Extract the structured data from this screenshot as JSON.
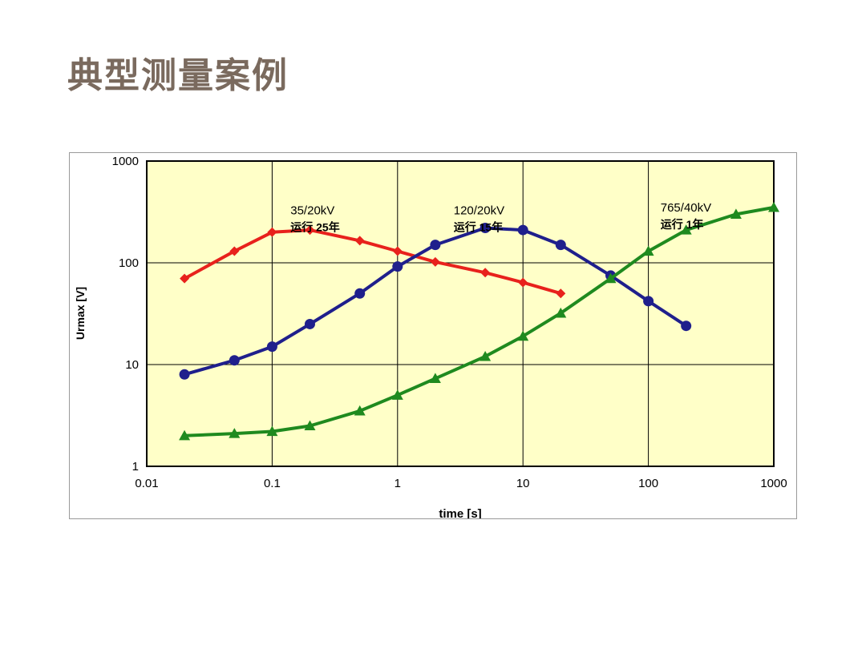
{
  "page": {
    "title": "典型测量案例"
  },
  "chart_data": {
    "type": "line",
    "title": "",
    "xlabel": "time [s]",
    "ylabel": "Urmax [V]",
    "x_scale": "log",
    "y_scale": "log",
    "xlim": [
      0.01,
      1000
    ],
    "ylim": [
      1,
      1000
    ],
    "x_ticks": [
      {
        "value": 0.01,
        "label": "0.01"
      },
      {
        "value": 0.1,
        "label": "0.1"
      },
      {
        "value": 1,
        "label": "1"
      },
      {
        "value": 10,
        "label": "10"
      },
      {
        "value": 100,
        "label": "100"
      },
      {
        "value": 1000,
        "label": "1000"
      }
    ],
    "y_ticks": [
      {
        "value": 1,
        "label": "1"
      },
      {
        "value": 10,
        "label": "10"
      },
      {
        "value": 100,
        "label": "100"
      },
      {
        "value": 1000,
        "label": "1000"
      }
    ],
    "grid": true,
    "plot_background": "#ffffc8",
    "series": [
      {
        "color": "#e8211c",
        "marker": "diamond",
        "label_line1": "35/20kV",
        "label_line2": "运行 25年",
        "label_pos": [
          0.14,
          300
        ],
        "points": [
          [
            0.02,
            70
          ],
          [
            0.05,
            130
          ],
          [
            0.1,
            200
          ],
          [
            0.2,
            210
          ],
          [
            0.5,
            165
          ],
          [
            1,
            130
          ],
          [
            2,
            102
          ],
          [
            5,
            80
          ],
          [
            10,
            64
          ],
          [
            20,
            50
          ]
        ]
      },
      {
        "color": "#1f1f8c",
        "marker": "circle",
        "label_line1": "120/20kV",
        "label_line2": "运行 15年",
        "label_pos": [
          2.8,
          300
        ],
        "points": [
          [
            0.02,
            8
          ],
          [
            0.05,
            11
          ],
          [
            0.1,
            15
          ],
          [
            0.2,
            25
          ],
          [
            0.5,
            50
          ],
          [
            1,
            92
          ],
          [
            2,
            150
          ],
          [
            5,
            220
          ],
          [
            10,
            210
          ],
          [
            20,
            150
          ],
          [
            50,
            75
          ],
          [
            100,
            42
          ],
          [
            200,
            24
          ]
        ]
      },
      {
        "color": "#1f8a1f",
        "marker": "triangle",
        "label_line1": "765/40kV",
        "label_line2": "运行 1年",
        "label_pos": [
          125,
          320
        ],
        "points": [
          [
            0.02,
            2
          ],
          [
            0.05,
            2.1
          ],
          [
            0.1,
            2.2
          ],
          [
            0.2,
            2.5
          ],
          [
            0.5,
            3.5
          ],
          [
            1,
            5
          ],
          [
            2,
            7.3
          ],
          [
            5,
            12
          ],
          [
            10,
            19
          ],
          [
            20,
            32
          ],
          [
            50,
            70
          ],
          [
            100,
            130
          ],
          [
            200,
            210
          ],
          [
            500,
            300
          ],
          [
            1000,
            350
          ]
        ]
      }
    ]
  }
}
